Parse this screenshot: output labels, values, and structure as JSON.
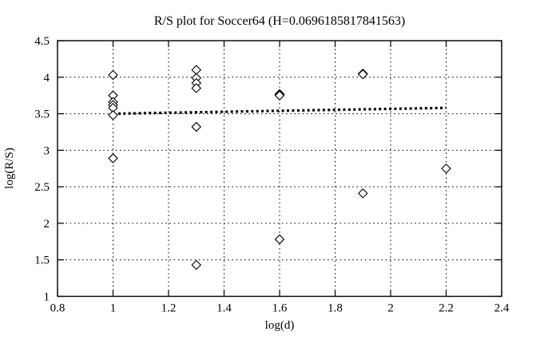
{
  "figure": {
    "background": "#ffffff",
    "foreground": "#000000"
  },
  "chart_data": {
    "type": "scatter",
    "title": "R/S plot for Soccer64 (H=0.0696185817841563)",
    "xlabel": "log(d)",
    "ylabel": "log(R/S)",
    "xlim": [
      0.8,
      2.4
    ],
    "ylim": [
      1,
      4.5
    ],
    "xticks": [
      0.8,
      1,
      1.2,
      1.4,
      1.6,
      1.8,
      2,
      2.2,
      2.4
    ],
    "xtick_labels": [
      "0.8",
      "1",
      "1.2",
      "1.4",
      "1.6",
      "1.8",
      "2",
      "2.2",
      "2.4"
    ],
    "yticks": [
      1,
      1.5,
      2,
      2.5,
      3,
      3.5,
      4,
      4.5
    ],
    "ytick_labels": [
      "1",
      "1.5",
      "2",
      "2.5",
      "3",
      "3.5",
      "4",
      "4.5"
    ],
    "grid": true,
    "legend": "none",
    "marker": "open-diamond",
    "marker_color": "#000000",
    "hurst_exponent": "0.0696185817841563",
    "points": [
      [
        1.0,
        4.03
      ],
      [
        1.0,
        3.75
      ],
      [
        1.0,
        3.66
      ],
      [
        1.0,
        3.62
      ],
      [
        1.0,
        3.58
      ],
      [
        1.0,
        3.48
      ],
      [
        1.0,
        2.89
      ],
      [
        1.3,
        4.1
      ],
      [
        1.3,
        3.99
      ],
      [
        1.3,
        3.92
      ],
      [
        1.3,
        3.85
      ],
      [
        1.3,
        3.32
      ],
      [
        1.3,
        1.43
      ],
      [
        1.6,
        3.77
      ],
      [
        1.6,
        3.76
      ],
      [
        1.6,
        3.75
      ],
      [
        1.6,
        1.78
      ],
      [
        1.9,
        4.05
      ],
      [
        1.9,
        4.04
      ],
      [
        1.9,
        2.41
      ],
      [
        2.2,
        2.75
      ]
    ],
    "fit_line": {
      "style": "thick-dotted",
      "x1": 1.0,
      "y1": 3.5,
      "x2": 2.2,
      "y2": 3.58
    }
  }
}
